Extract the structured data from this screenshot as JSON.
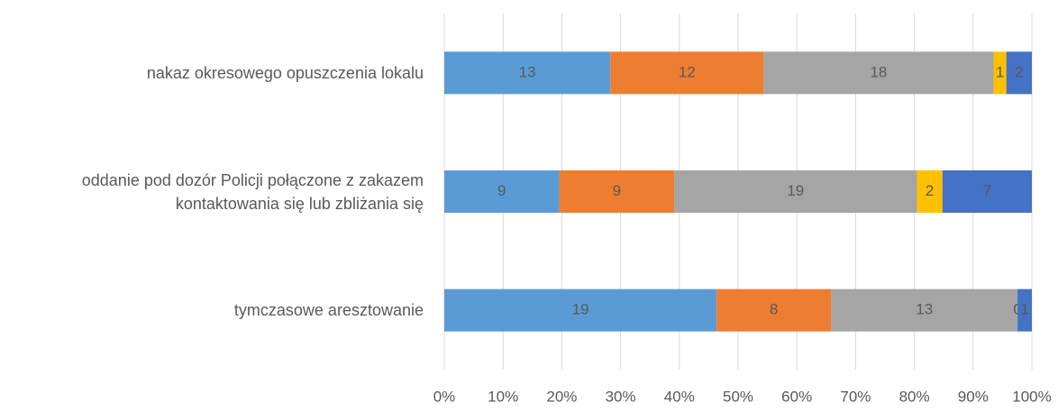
{
  "chart_data": {
    "type": "bar",
    "orientation": "horizontal",
    "stacking": "percent",
    "categories": [
      "nakaz okresowego opuszczenia  lokalu",
      "oddanie pod dozór Policji połączone z zakazem kontaktowania się lub zbliżania się",
      "tymczasowe aresztowanie"
    ],
    "series": [
      {
        "color": "#5b9bd5",
        "values": [
          13,
          9,
          19
        ]
      },
      {
        "color": "#ed7d31",
        "values": [
          12,
          9,
          8
        ]
      },
      {
        "color": "#a5a5a5",
        "values": [
          18,
          19,
          13
        ]
      },
      {
        "color": "#ffc000",
        "values": [
          1,
          2,
          0
        ]
      },
      {
        "color": "#4472c4",
        "values": [
          2,
          7,
          1
        ]
      }
    ],
    "xlim": [
      0,
      100
    ],
    "xticks": [
      {
        "value": 0,
        "label": "0%"
      },
      {
        "value": 10,
        "label": "10%"
      },
      {
        "value": 20,
        "label": "20%"
      },
      {
        "value": 30,
        "label": "30%"
      },
      {
        "value": 40,
        "label": "40%"
      },
      {
        "value": 50,
        "label": "50%"
      },
      {
        "value": 60,
        "label": "60%"
      },
      {
        "value": 70,
        "label": "70%"
      },
      {
        "value": 80,
        "label": "80%"
      },
      {
        "value": 90,
        "label": "90%"
      },
      {
        "value": 100,
        "label": "100%"
      }
    ],
    "grid": true
  }
}
